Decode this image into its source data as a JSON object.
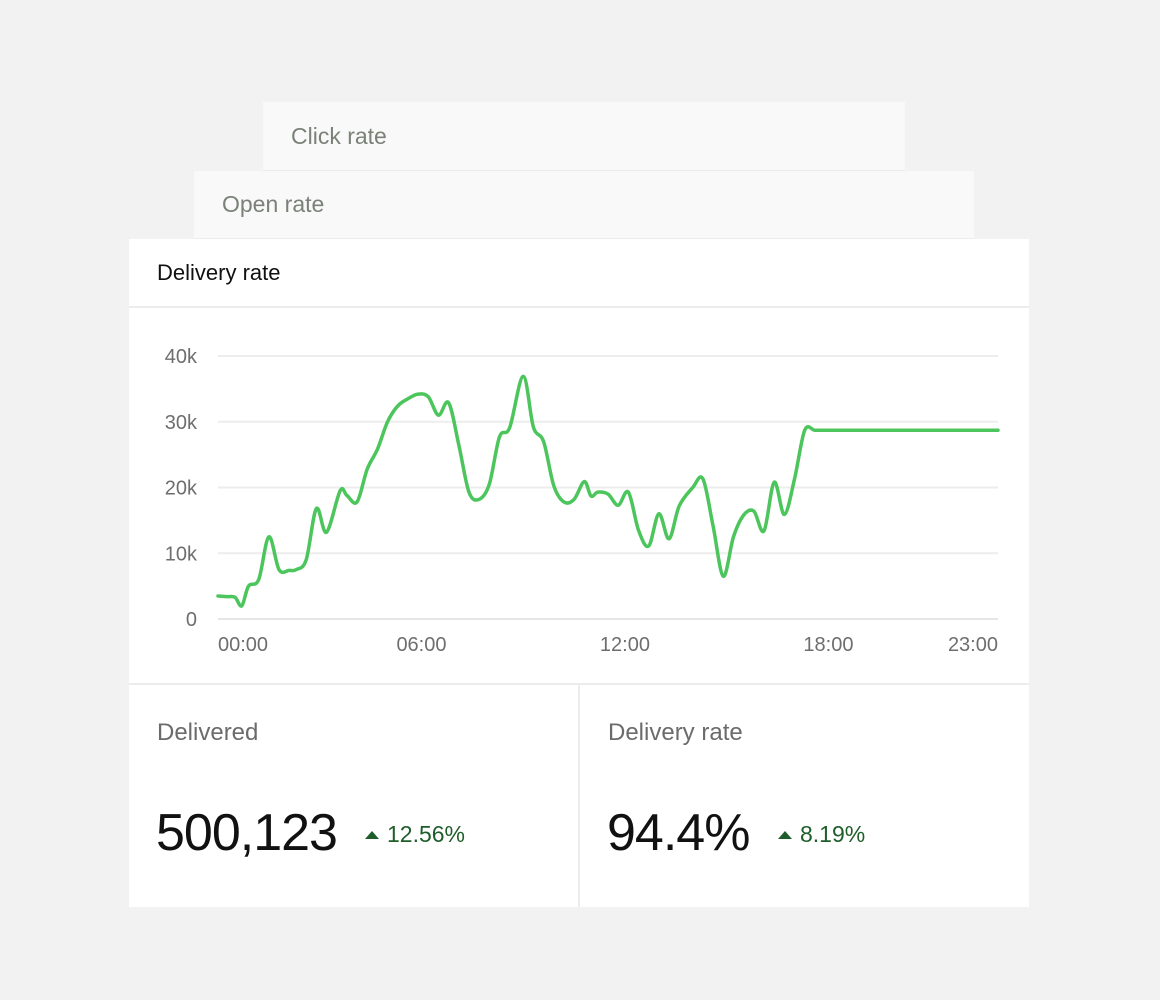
{
  "tabs": {
    "click_rate": "Click rate",
    "open_rate": "Open rate"
  },
  "card": {
    "title": "Delivery rate"
  },
  "chart_data": {
    "type": "line",
    "title": "",
    "xlabel": "",
    "ylabel": "",
    "ylim": [
      0,
      40000
    ],
    "xlim": [
      0,
      23
    ],
    "yticks": [
      0,
      10000,
      20000,
      30000,
      40000
    ],
    "ytick_labels": [
      "0",
      "10k",
      "20k",
      "30k",
      "40k"
    ],
    "xticks": [
      0,
      6,
      12,
      18,
      23
    ],
    "xtick_labels": [
      "00:00",
      "06:00",
      "12:00",
      "18:00",
      "23:00"
    ],
    "grid": true,
    "line_color": "#4cc55c",
    "series": [
      {
        "name": "",
        "x": [
          0,
          0.25,
          0.5,
          0.7,
          0.9,
          1.2,
          1.5,
          1.8,
          2.1,
          2.3,
          2.6,
          2.9,
          3.2,
          3.6,
          3.8,
          4.1,
          4.4,
          4.7,
          5.0,
          5.3,
          5.6,
          5.9,
          6.2,
          6.5,
          6.8,
          7.1,
          7.4,
          7.7,
          8.0,
          8.3,
          8.6,
          9.0,
          9.3,
          9.6,
          9.9,
          10.2,
          10.5,
          10.8,
          11.0,
          11.2,
          11.5,
          11.8,
          12.1,
          12.4,
          12.7,
          13.0,
          13.3,
          13.6,
          14.0,
          14.3,
          14.6,
          14.9,
          15.2,
          15.5,
          15.8,
          16.1,
          16.4,
          16.7,
          17.0,
          17.3,
          17.6,
          17.9,
          18.2,
          18.5,
          18.8,
          19.1,
          19.4,
          19.7,
          20.0,
          20.3,
          20.6,
          20.9,
          21.2,
          21.5,
          21.8,
          22.1,
          22.4,
          22.7,
          23.0
        ],
        "values": [
          3500,
          3400,
          3300,
          2000,
          5000,
          6000,
          12500,
          7500,
          7400,
          7500,
          9000,
          16800,
          13200,
          19500,
          18800,
          17800,
          22800,
          25800,
          30000,
          32400,
          33500,
          34200,
          33800,
          31000,
          32900,
          26500,
          19300,
          18200,
          20500,
          27700,
          29100,
          36900,
          29200,
          27000,
          20300,
          17800,
          18200,
          20900,
          18700,
          19300,
          19000,
          17300,
          19300,
          13500,
          11100,
          16000,
          12200,
          17200,
          20000,
          21300,
          14100,
          6500,
          12500,
          15800,
          16400,
          13400,
          20800,
          15900,
          21300,
          28700,
          28700,
          28700,
          28700,
          28700,
          28700,
          28700,
          28700,
          28700,
          28700,
          28700,
          28700,
          28700,
          28700,
          28700,
          28700,
          28700,
          28700,
          28700,
          28700
        ]
      }
    ]
  },
  "stats": [
    {
      "label": "Delivered",
      "value": "500,123",
      "change": "12.56%"
    },
    {
      "label": "Delivery rate",
      "value": "94.4%",
      "change": "8.19%"
    }
  ]
}
